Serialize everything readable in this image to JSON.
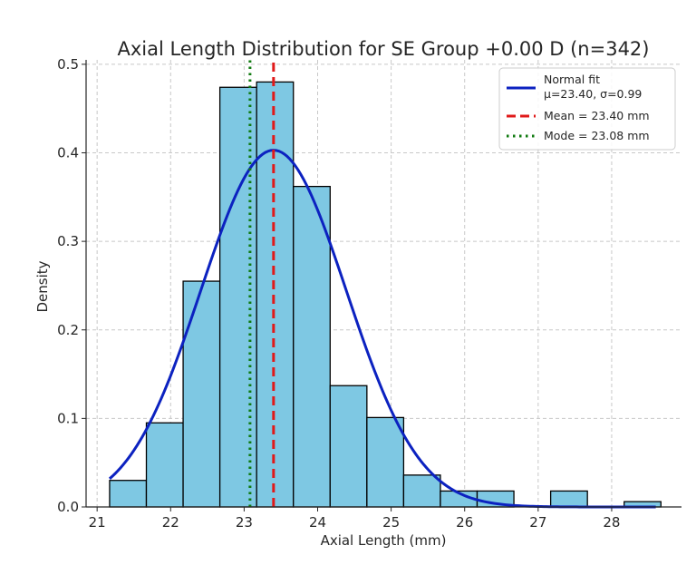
{
  "chart_data": {
    "type": "bar",
    "title": "Axial Length Distribution for SE Group +0.00 D (n=342)",
    "xlabel": "Axial Length (mm)",
    "ylabel": "Density",
    "xlim": [
      20.85,
      28.95
    ],
    "ylim": [
      0,
      0.505
    ],
    "grid": true,
    "legend_position": "top-right",
    "xticks": [
      {
        "value": 21,
        "label": "21"
      },
      {
        "value": 22,
        "label": "22"
      },
      {
        "value": 23,
        "label": "23"
      },
      {
        "value": 24,
        "label": "24"
      },
      {
        "value": 25,
        "label": "25"
      },
      {
        "value": 26,
        "label": "26"
      },
      {
        "value": 27,
        "label": "27"
      },
      {
        "value": 28,
        "label": "28"
      }
    ],
    "yticks": [
      {
        "value": 0.0,
        "label": "0.0"
      },
      {
        "value": 0.1,
        "label": "0.1"
      },
      {
        "value": 0.2,
        "label": "0.2"
      },
      {
        "value": 0.3,
        "label": "0.3"
      },
      {
        "value": 0.4,
        "label": "0.4"
      },
      {
        "value": 0.5,
        "label": "0.5"
      }
    ],
    "histogram": {
      "bin_edges": [
        21.17,
        21.67,
        22.17,
        22.67,
        23.17,
        23.67,
        24.17,
        24.67,
        25.17,
        25.67,
        26.17,
        26.67,
        27.17,
        27.67,
        28.17,
        28.67
      ],
      "densities": [
        0.03,
        0.095,
        0.255,
        0.474,
        0.48,
        0.362,
        0.137,
        0.101,
        0.036,
        0.018,
        0.018,
        0.0,
        0.018,
        0.0,
        0.006
      ],
      "fill": "#7ec8e3",
      "edge": "#000000"
    },
    "normal_fit": {
      "label": "Normal fit",
      "sublabel": "μ=23.40, σ=0.99",
      "mu": 23.4,
      "sigma": 0.99,
      "x_range": [
        21.17,
        28.6
      ],
      "color": "#0c22c0"
    },
    "mean_line": {
      "label": "Mean = 23.40 mm",
      "x": 23.4,
      "color": "#e01a1a"
    },
    "mode_line": {
      "label": "Mode = 23.08 mm",
      "x": 23.08,
      "color": "#0f7a0f"
    }
  }
}
